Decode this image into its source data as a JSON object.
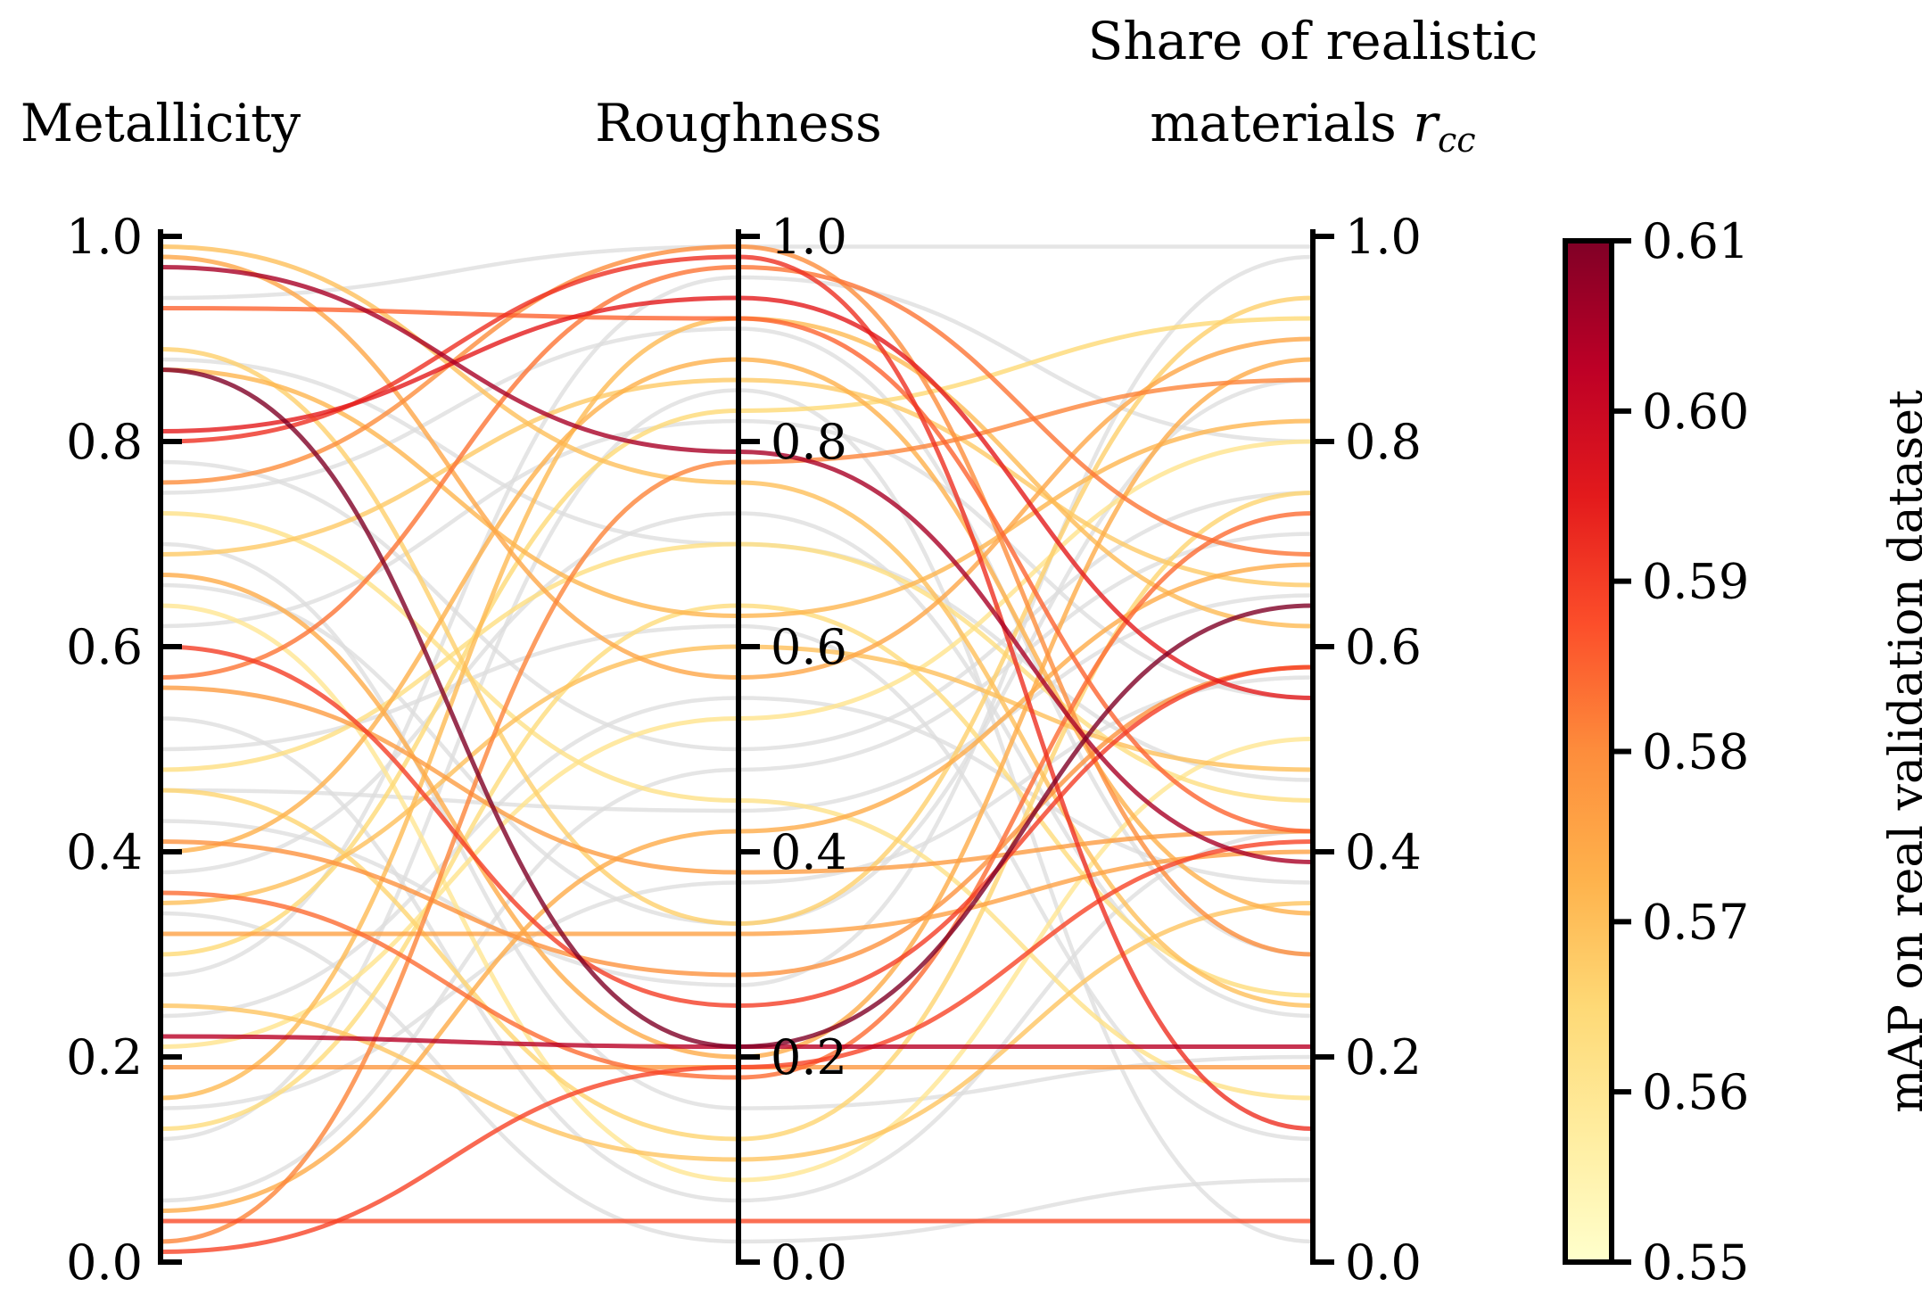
{
  "chart_data": {
    "type": "parallel-coordinates",
    "axes": [
      {
        "name": "Metallicity",
        "title_lines": [
          "Metallicity"
        ],
        "range": [
          0,
          1
        ]
      },
      {
        "name": "Roughness",
        "title_lines": [
          "Roughness"
        ],
        "range": [
          0,
          1
        ]
      },
      {
        "name": "Share of realistic materials",
        "title_lines": [
          "Share of realistic",
          "materials "
        ],
        "title_math": "r",
        "title_math_sub": "cc",
        "range": [
          0,
          1
        ]
      }
    ],
    "ticks": [
      "0.0",
      "0.2",
      "0.4",
      "0.6",
      "0.8",
      "1.0"
    ],
    "colorbar": {
      "label": "mAP on real validation dataset",
      "range": [
        0.55,
        0.61
      ],
      "ticks": [
        "0.55",
        "0.56",
        "0.57",
        "0.58",
        "0.59",
        "0.60",
        "0.61"
      ],
      "colormap": "YlOrRd",
      "stops": [
        "#ffffcc",
        "#ffeda0",
        "#fed976",
        "#feb24c",
        "#fd8d3c",
        "#fc4e2a",
        "#e31a1c",
        "#bd0026",
        "#800026"
      ]
    },
    "unscored_color": "#dcdcdc",
    "series": [
      {
        "values": [
          0.97,
          0.79,
          0.39
        ],
        "map": 0.605
      },
      {
        "values": [
          0.87,
          0.21,
          0.64
        ],
        "map": 0.61
      },
      {
        "values": [
          0.81,
          0.94,
          0.55
        ],
        "map": 0.595
      },
      {
        "values": [
          0.8,
          0.98,
          0.13
        ],
        "map": 0.592
      },
      {
        "values": [
          0.22,
          0.21,
          0.21
        ],
        "map": 0.603
      },
      {
        "values": [
          0.6,
          0.25,
          0.58
        ],
        "map": 0.59
      },
      {
        "values": [
          0.04,
          0.04,
          0.04
        ],
        "map": 0.588
      },
      {
        "values": [
          0.01,
          0.19,
          0.41
        ],
        "map": 0.589
      },
      {
        "values": [
          0.93,
          0.92,
          0.42
        ],
        "map": 0.585
      },
      {
        "values": [
          0.99,
          0.76,
          0.25
        ],
        "map": 0.57
      },
      {
        "values": [
          0.98,
          0.57,
          0.9
        ],
        "map": 0.575
      },
      {
        "values": [
          0.89,
          0.33,
          0.94
        ],
        "map": 0.567
      },
      {
        "values": [
          0.87,
          0.63,
          0.82
        ],
        "map": 0.572
      },
      {
        "values": [
          0.76,
          0.99,
          0.3
        ],
        "map": 0.58
      },
      {
        "values": [
          0.73,
          0.45,
          0.16
        ],
        "map": 0.562
      },
      {
        "values": [
          0.69,
          0.86,
          0.66
        ],
        "map": 0.568
      },
      {
        "values": [
          0.67,
          0.2,
          0.88
        ],
        "map": 0.574
      },
      {
        "values": [
          0.64,
          0.08,
          0.51
        ],
        "map": 0.56
      },
      {
        "values": [
          0.57,
          0.97,
          0.69
        ],
        "map": 0.583
      },
      {
        "values": [
          0.56,
          0.38,
          0.42
        ],
        "map": 0.577
      },
      {
        "values": [
          0.48,
          0.7,
          0.45
        ],
        "map": 0.563
      },
      {
        "values": [
          0.46,
          0.12,
          0.75
        ],
        "map": 0.566
      },
      {
        "values": [
          0.41,
          0.28,
          0.58
        ],
        "map": 0.579
      },
      {
        "values": [
          0.4,
          0.88,
          0.34
        ],
        "map": 0.573
      },
      {
        "values": [
          0.36,
          0.18,
          0.73
        ],
        "map": 0.584
      },
      {
        "values": [
          0.35,
          0.6,
          0.48
        ],
        "map": 0.57
      },
      {
        "values": [
          0.32,
          0.32,
          0.4
        ],
        "map": 0.576
      },
      {
        "values": [
          0.3,
          0.83,
          0.92
        ],
        "map": 0.565
      },
      {
        "values": [
          0.25,
          0.1,
          0.35
        ],
        "map": 0.569
      },
      {
        "values": [
          0.21,
          0.53,
          0.8
        ],
        "map": 0.561
      },
      {
        "values": [
          0.19,
          0.19,
          0.19
        ],
        "map": 0.578
      },
      {
        "values": [
          0.16,
          0.92,
          0.62
        ],
        "map": 0.571
      },
      {
        "values": [
          0.13,
          0.64,
          0.26
        ],
        "map": 0.564
      },
      {
        "values": [
          0.02,
          0.78,
          0.86
        ],
        "map": 0.581
      },
      {
        "values": [
          0.05,
          0.42,
          0.68
        ],
        "map": 0.574
      },
      {
        "values": [
          0.94,
          0.99,
          0.99
        ],
        "map": null
      },
      {
        "values": [
          0.88,
          0.7,
          0.47
        ],
        "map": null
      },
      {
        "values": [
          0.78,
          0.5,
          0.75
        ],
        "map": null
      },
      {
        "values": [
          0.75,
          0.91,
          0.3
        ],
        "map": null
      },
      {
        "values": [
          0.7,
          0.15,
          0.2
        ],
        "map": null
      },
      {
        "values": [
          0.66,
          0.33,
          0.86
        ],
        "map": null
      },
      {
        "values": [
          0.62,
          0.82,
          0.55
        ],
        "map": null
      },
      {
        "values": [
          0.53,
          0.06,
          0.42
        ],
        "map": null
      },
      {
        "values": [
          0.5,
          0.62,
          0.12
        ],
        "map": null
      },
      {
        "values": [
          0.46,
          0.44,
          0.65
        ],
        "map": null
      },
      {
        "values": [
          0.43,
          0.27,
          0.98
        ],
        "map": null
      },
      {
        "values": [
          0.38,
          0.73,
          0.24
        ],
        "map": null
      },
      {
        "values": [
          0.34,
          0.02,
          0.08
        ],
        "map": null
      },
      {
        "values": [
          0.28,
          0.96,
          0.8
        ],
        "map": null
      },
      {
        "values": [
          0.24,
          0.55,
          0.37
        ],
        "map": null
      },
      {
        "values": [
          0.15,
          0.37,
          0.57
        ],
        "map": null
      },
      {
        "values": [
          0.12,
          0.85,
          0.02
        ],
        "map": null
      },
      {
        "values": [
          0.06,
          0.48,
          0.71
        ],
        "map": null
      }
    ]
  }
}
